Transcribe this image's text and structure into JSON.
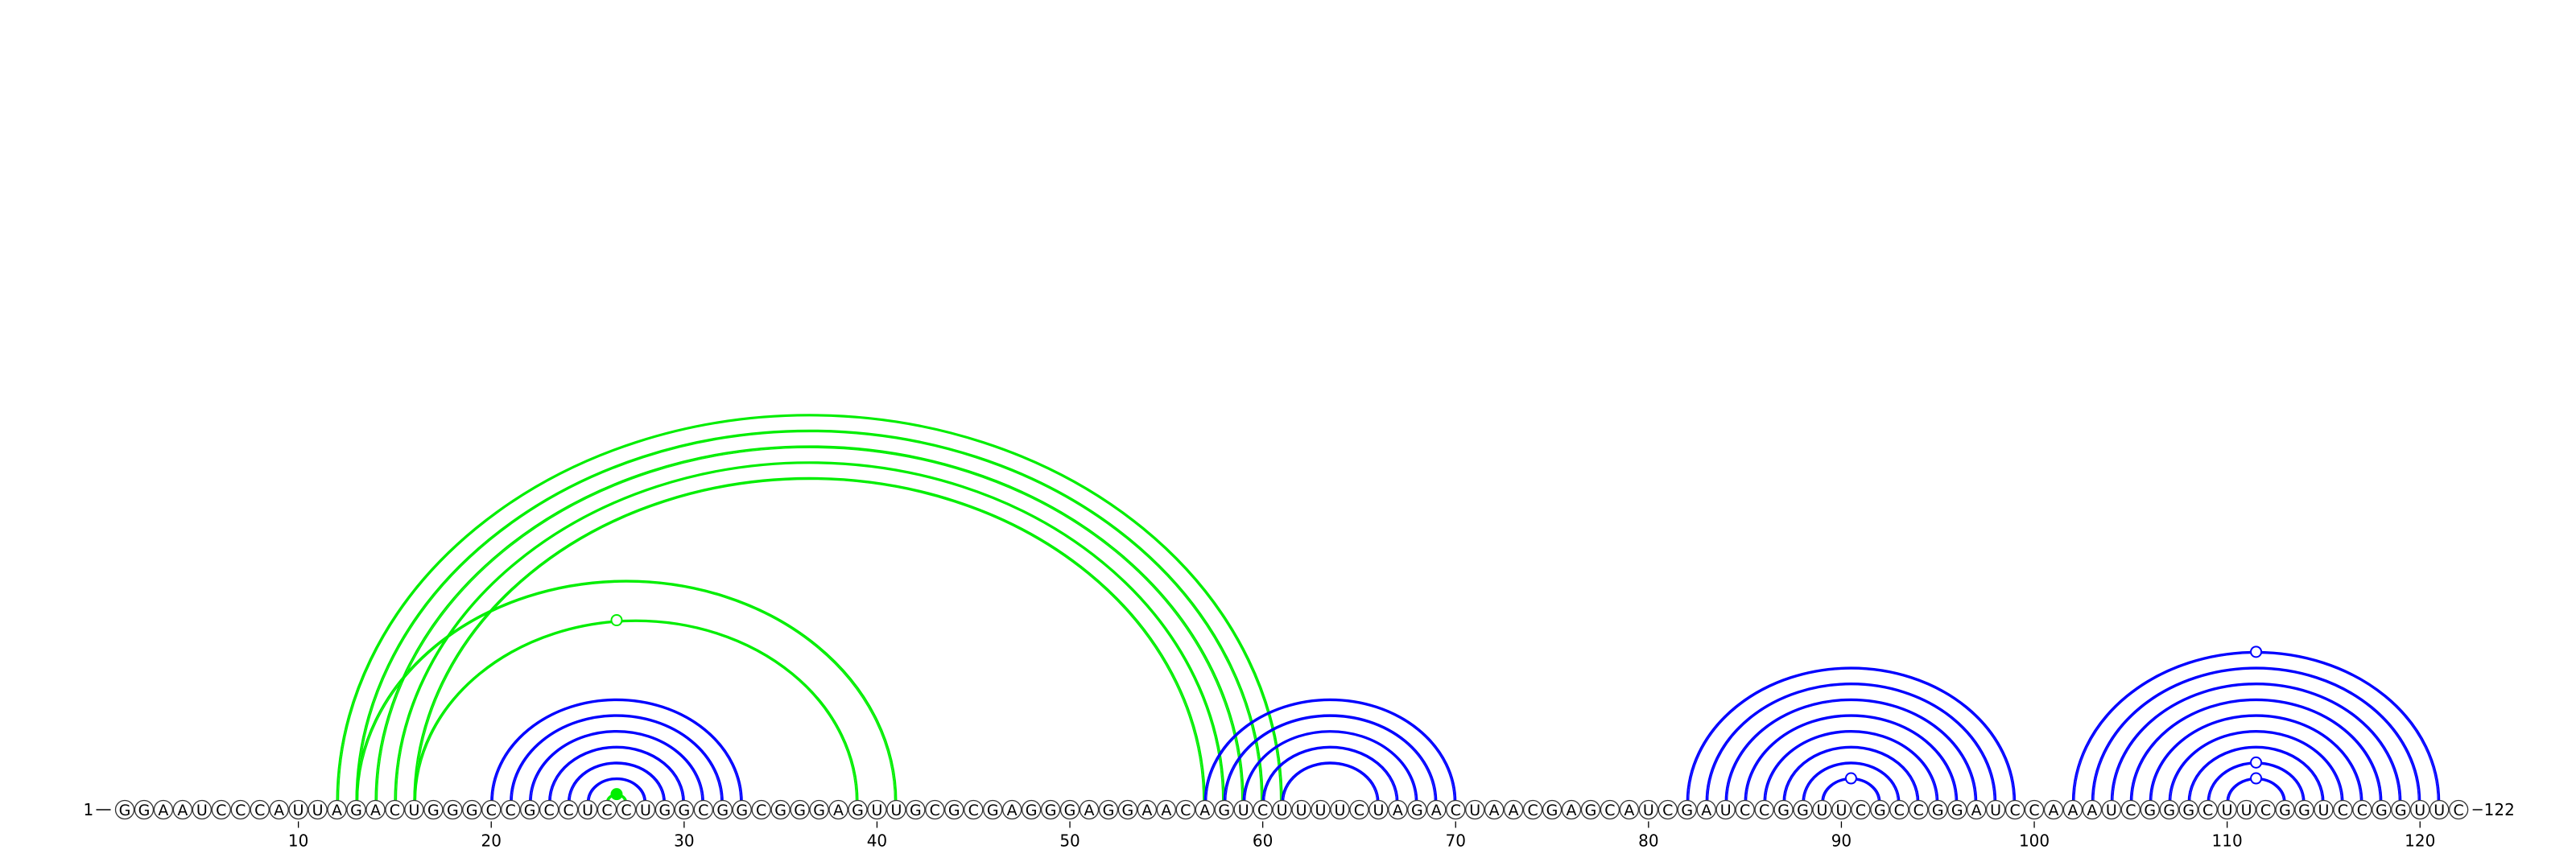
{
  "diagram": {
    "type": "rna-arc-diagram",
    "sequence": "GGAAUCCCAUUAGACUGGGCCGCCUCCUGGCGGCGGGAGUUGCGCGAGGGAGGAACAGUCUUUUCUAGACUAACGAGCAUCGAUCCGGUUCGCCGGAUCCAAAUCGGGCUUCGGUCCGGUUC",
    "start_label": "1",
    "end_label": "122",
    "tick_labels": [
      "10",
      "20",
      "30",
      "40",
      "50",
      "60",
      "70",
      "80",
      "90",
      "100",
      "110",
      "120"
    ],
    "colors": {
      "primary_arc": "#0000ff",
      "alternate_arc": "#00ee00",
      "nucleotide_fill": "#ffffff",
      "nucleotide_stroke": "#333333"
    },
    "blue_pairs": [
      [
        20,
        33
      ],
      [
        21,
        32
      ],
      [
        22,
        31
      ],
      [
        23,
        30
      ],
      [
        24,
        29
      ],
      [
        25,
        28
      ],
      [
        57,
        70
      ],
      [
        58,
        69
      ],
      [
        59,
        68
      ],
      [
        60,
        67
      ],
      [
        61,
        66
      ],
      [
        82,
        99
      ],
      [
        83,
        98
      ],
      [
        84,
        97
      ],
      [
        85,
        96
      ],
      [
        86,
        95
      ],
      [
        87,
        94
      ],
      [
        88,
        93
      ],
      [
        89,
        92
      ],
      [
        102,
        121
      ],
      [
        103,
        120
      ],
      [
        104,
        119
      ],
      [
        105,
        118
      ],
      [
        106,
        117
      ],
      [
        107,
        116
      ],
      [
        108,
        115
      ],
      [
        109,
        114
      ],
      [
        110,
        113
      ]
    ],
    "green_pairs": [
      [
        12,
        61
      ],
      [
        13,
        60
      ],
      [
        14,
        59
      ],
      [
        15,
        58
      ],
      [
        16,
        57
      ],
      [
        13,
        41
      ],
      [
        16,
        39
      ],
      [
        26,
        27
      ]
    ],
    "markers": [
      {
        "pos": 26.5,
        "pair": "16-39",
        "color": "#00ee00",
        "filled": false,
        "arc": "green-long"
      },
      {
        "pos": 26.5,
        "pair": "26-27",
        "color": "#00ee00",
        "filled": true,
        "arc": "green-inner"
      },
      {
        "pos": 90.5,
        "pair": "89-92",
        "color": "#0000ff",
        "filled": false,
        "arc": "blue-inner"
      },
      {
        "pos": 111.5,
        "pair": "110-113",
        "color": "#0000ff",
        "filled": false,
        "arc": "blue-inner"
      },
      {
        "pos": 111.5,
        "pair": "109-114",
        "color": "#0000ff",
        "filled": false,
        "arc": "blue-mid"
      },
      {
        "pos": 111.5,
        "pair": "102-121",
        "color": "#0000ff",
        "filled": false,
        "arc": "blue-outer"
      }
    ]
  }
}
